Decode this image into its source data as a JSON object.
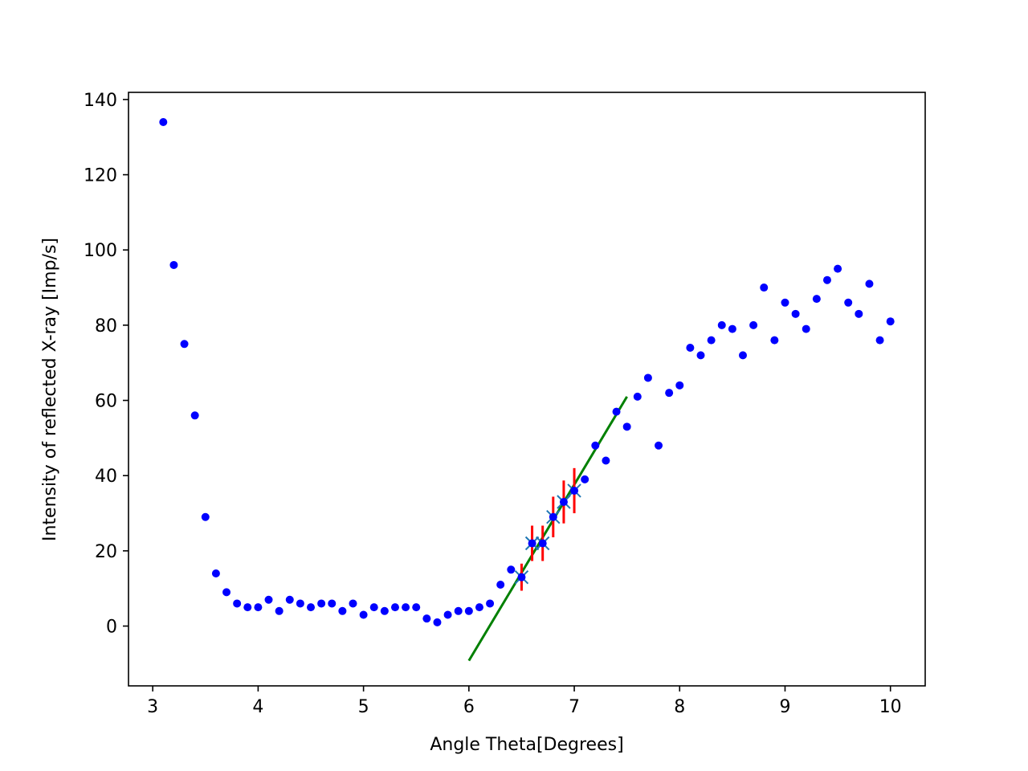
{
  "chart_data": {
    "type": "scatter",
    "title": "",
    "xlabel": "Angle Theta[Degrees]",
    "ylabel": "Intensity of reflected X-ray [Imp/s]",
    "xlim": [
      2.77,
      10.33
    ],
    "ylim": [
      -15.9,
      141.9
    ],
    "xticks": [
      3,
      4,
      5,
      6,
      7,
      8,
      9,
      10
    ],
    "yticks": [
      0,
      20,
      40,
      60,
      80,
      100,
      120,
      140
    ],
    "grid": false,
    "legend": "none",
    "colors": {
      "data": "#0000ff",
      "errorbar": "#ff0000",
      "fit_point": "#1f77b4",
      "fit_line": "#008000"
    },
    "series": [
      {
        "kind": "points",
        "x": [
          3.1,
          3.2,
          3.3,
          3.4,
          3.5,
          3.6,
          3.7,
          3.8,
          3.9,
          4.0,
          4.1,
          4.2,
          4.3,
          4.4,
          4.5,
          4.6,
          4.7,
          4.8,
          4.9,
          5.0,
          5.1,
          5.2,
          5.3,
          5.4,
          5.5,
          5.6,
          5.7,
          5.8,
          5.9,
          6.0,
          6.1,
          6.2,
          6.3,
          6.4,
          6.5,
          6.6,
          6.7,
          6.8,
          6.9,
          7.0,
          7.1,
          7.2,
          7.3,
          7.4,
          7.5,
          7.6,
          7.7,
          7.8,
          7.9,
          8.0,
          8.1,
          8.2,
          8.3,
          8.4,
          8.5,
          8.6,
          8.7,
          8.8,
          8.9,
          9.0,
          9.1,
          9.2,
          9.3,
          9.4,
          9.5,
          9.6,
          9.7,
          9.8,
          9.9,
          10.0
        ],
        "y": [
          134,
          96,
          75,
          56,
          29,
          14,
          9,
          6,
          5,
          5,
          7,
          4,
          7,
          6,
          5,
          6,
          6,
          4,
          6,
          3,
          5,
          4,
          5,
          5,
          5,
          2,
          1,
          3,
          4,
          4,
          5,
          6,
          11,
          15,
          13,
          22,
          22,
          29,
          33,
          36,
          39,
          48,
          44,
          57,
          53,
          61,
          66,
          48,
          62,
          64,
          74,
          72,
          76,
          80,
          79,
          72,
          80,
          90,
          76,
          86,
          83,
          79,
          87,
          92,
          95,
          86,
          83,
          91,
          76,
          81
        ]
      },
      {
        "kind": "errorbar",
        "x": [
          6.5,
          6.6,
          6.7,
          6.8,
          6.9,
          7.0
        ],
        "y": [
          13,
          22,
          22,
          29,
          33,
          36
        ],
        "yerr": [
          3.6,
          4.7,
          4.7,
          5.4,
          5.7,
          6.0
        ]
      },
      {
        "kind": "fit_line",
        "x": [
          6.0,
          7.5
        ],
        "y": [
          -9.2,
          61.0
        ]
      }
    ]
  }
}
